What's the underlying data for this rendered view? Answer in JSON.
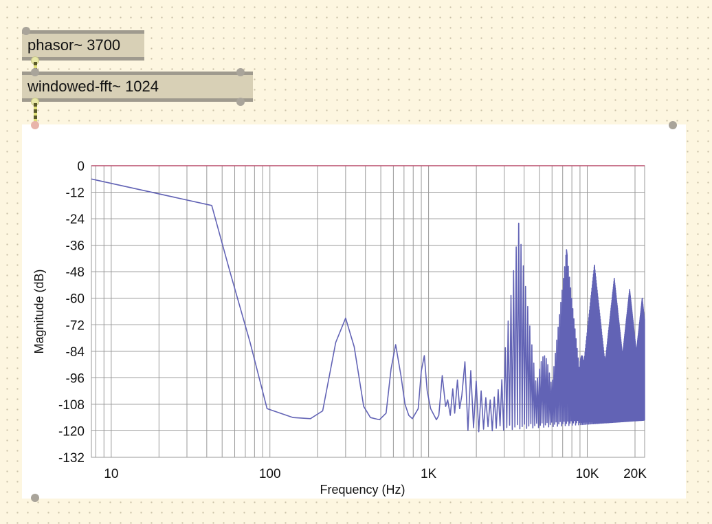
{
  "objects": {
    "phasor": "phasor~ 3700",
    "fft": "windowed-fft~ 1024"
  },
  "chart_data": {
    "type": "line",
    "xlabel": "Frequency (Hz)",
    "ylabel": "Magnitude (dB)",
    "xscale": "log",
    "xlim": [
      7.5,
      23000
    ],
    "ylim": [
      -132,
      0
    ],
    "yticks": [
      0,
      -12,
      -24,
      -36,
      -48,
      -60,
      -72,
      -84,
      -96,
      -108,
      -120,
      -132
    ],
    "xtick_labels": [
      {
        "value": 10,
        "label": "10"
      },
      {
        "value": 100,
        "label": "100"
      },
      {
        "value": 1000,
        "label": "1K"
      },
      {
        "value": 10000,
        "label": "10K"
      },
      {
        "value": 20000,
        "label": "20K"
      }
    ],
    "grid": true,
    "series": [
      {
        "color": "#6263b5",
        "x": [
          7.5,
          43,
          56,
          75,
          96,
          140,
          180,
          215,
          260,
          300,
          340,
          390,
          430,
          490,
          540,
          580,
          620,
          670,
          710,
          750,
          790,
          860,
          900,
          940,
          980,
          1030,
          1120,
          1160,
          1220,
          1280,
          1320,
          1370,
          1420,
          1460,
          1520,
          1570,
          1620
        ],
        "y": [
          -6,
          -18,
          -48,
          -80,
          -110,
          -114,
          -114.5,
          -111,
          -80,
          -69,
          -82,
          -109,
          -114,
          -115,
          -112,
          -92,
          -81,
          -95,
          -108,
          -113,
          -114.5,
          -110,
          -93,
          -86,
          -102,
          -110,
          -115,
          -113,
          -95,
          -109,
          -106,
          -113,
          -101,
          -112,
          -97,
          -110,
          -104
        ]
      }
    ],
    "comb_peaks_hz": [
      3700,
      7400,
      11100,
      14800,
      18500,
      22200
    ],
    "comb_peaks_db": [
      -26,
      -38,
      -45,
      -51,
      -56,
      -60
    ]
  },
  "colors": {
    "background": "#fdf6e0",
    "object_fill": "#d8d0b6",
    "series": "#6263b5",
    "zero_line": "#b84c6a",
    "grid": "#999999"
  }
}
